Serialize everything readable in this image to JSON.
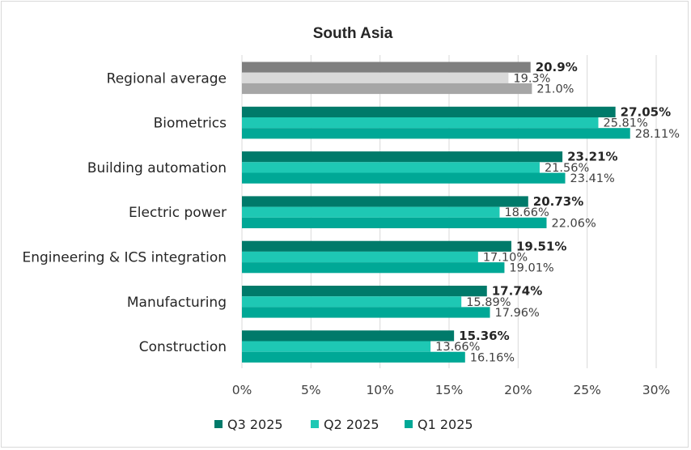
{
  "chart_data": {
    "type": "bar",
    "orientation": "horizontal",
    "title": "South Asia",
    "categories": [
      "Regional average",
      "Biometrics",
      "Building automation",
      "Electric power",
      "Engineering & ICS integration",
      "Manufacturing",
      "Construction"
    ],
    "series": [
      {
        "name": "Q3 2025",
        "color": "#007a6a",
        "values": [
          20.9,
          27.05,
          23.21,
          20.73,
          19.51,
          17.74,
          15.36
        ],
        "labels": [
          "20.9%",
          "27.05%",
          "23.21%",
          "20.73%",
          "19.51%",
          "17.74%",
          "15.36%"
        ],
        "average_color": "#7f7f7f"
      },
      {
        "name": "Q2 2025",
        "color": "#1ec8b4",
        "values": [
          19.3,
          25.81,
          21.56,
          18.66,
          17.1,
          15.89,
          13.66
        ],
        "labels": [
          "19.3%",
          "25.81%",
          "21.56%",
          "18.66%",
          "17.10%",
          "15.89%",
          "13.66%"
        ],
        "average_color": "#d9d9d9"
      },
      {
        "name": "Q1 2025",
        "color": "#00a896",
        "values": [
          21.0,
          28.11,
          23.41,
          22.06,
          19.01,
          17.96,
          16.16
        ],
        "labels": [
          "21.0%",
          "28.11%",
          "23.41%",
          "22.06%",
          "19.01%",
          "17.96%",
          "16.16%"
        ],
        "average_color": "#a6a6a6"
      }
    ],
    "xlim": [
      0,
      30
    ],
    "xticks": [
      "0%",
      "5%",
      "10%",
      "15%",
      "20%",
      "25%",
      "30%"
    ],
    "grid": true,
    "legend": "bottom"
  }
}
